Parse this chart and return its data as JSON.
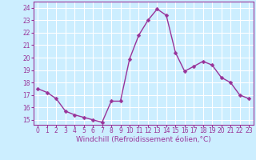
{
  "x": [
    0,
    1,
    2,
    3,
    4,
    5,
    6,
    7,
    8,
    9,
    10,
    11,
    12,
    13,
    14,
    15,
    16,
    17,
    18,
    19,
    20,
    21,
    22,
    23
  ],
  "y": [
    17.5,
    17.2,
    16.7,
    15.7,
    15.4,
    15.2,
    15.0,
    14.8,
    16.5,
    16.5,
    19.9,
    21.8,
    23.0,
    23.9,
    23.4,
    20.4,
    18.9,
    19.3,
    19.7,
    19.4,
    18.4,
    18.0,
    17.0,
    16.7
  ],
  "line_color": "#993399",
  "marker": "D",
  "marker_size": 2.5,
  "linewidth": 1.0,
  "xlabel": "Windchill (Refroidissement éolien,°C)",
  "xlabel_fontsize": 6.5,
  "ylabel_ticks": [
    15,
    16,
    17,
    18,
    19,
    20,
    21,
    22,
    23,
    24
  ],
  "xticks": [
    0,
    1,
    2,
    3,
    4,
    5,
    6,
    7,
    8,
    9,
    10,
    11,
    12,
    13,
    14,
    15,
    16,
    17,
    18,
    19,
    20,
    21,
    22,
    23
  ],
  "xlim": [
    -0.5,
    23.5
  ],
  "ylim": [
    14.6,
    24.5
  ],
  "bg_color": "#cceeff",
  "grid_color": "#ffffff",
  "tick_color": "#993399",
  "tick_fontsize": 5.5,
  "title": ""
}
